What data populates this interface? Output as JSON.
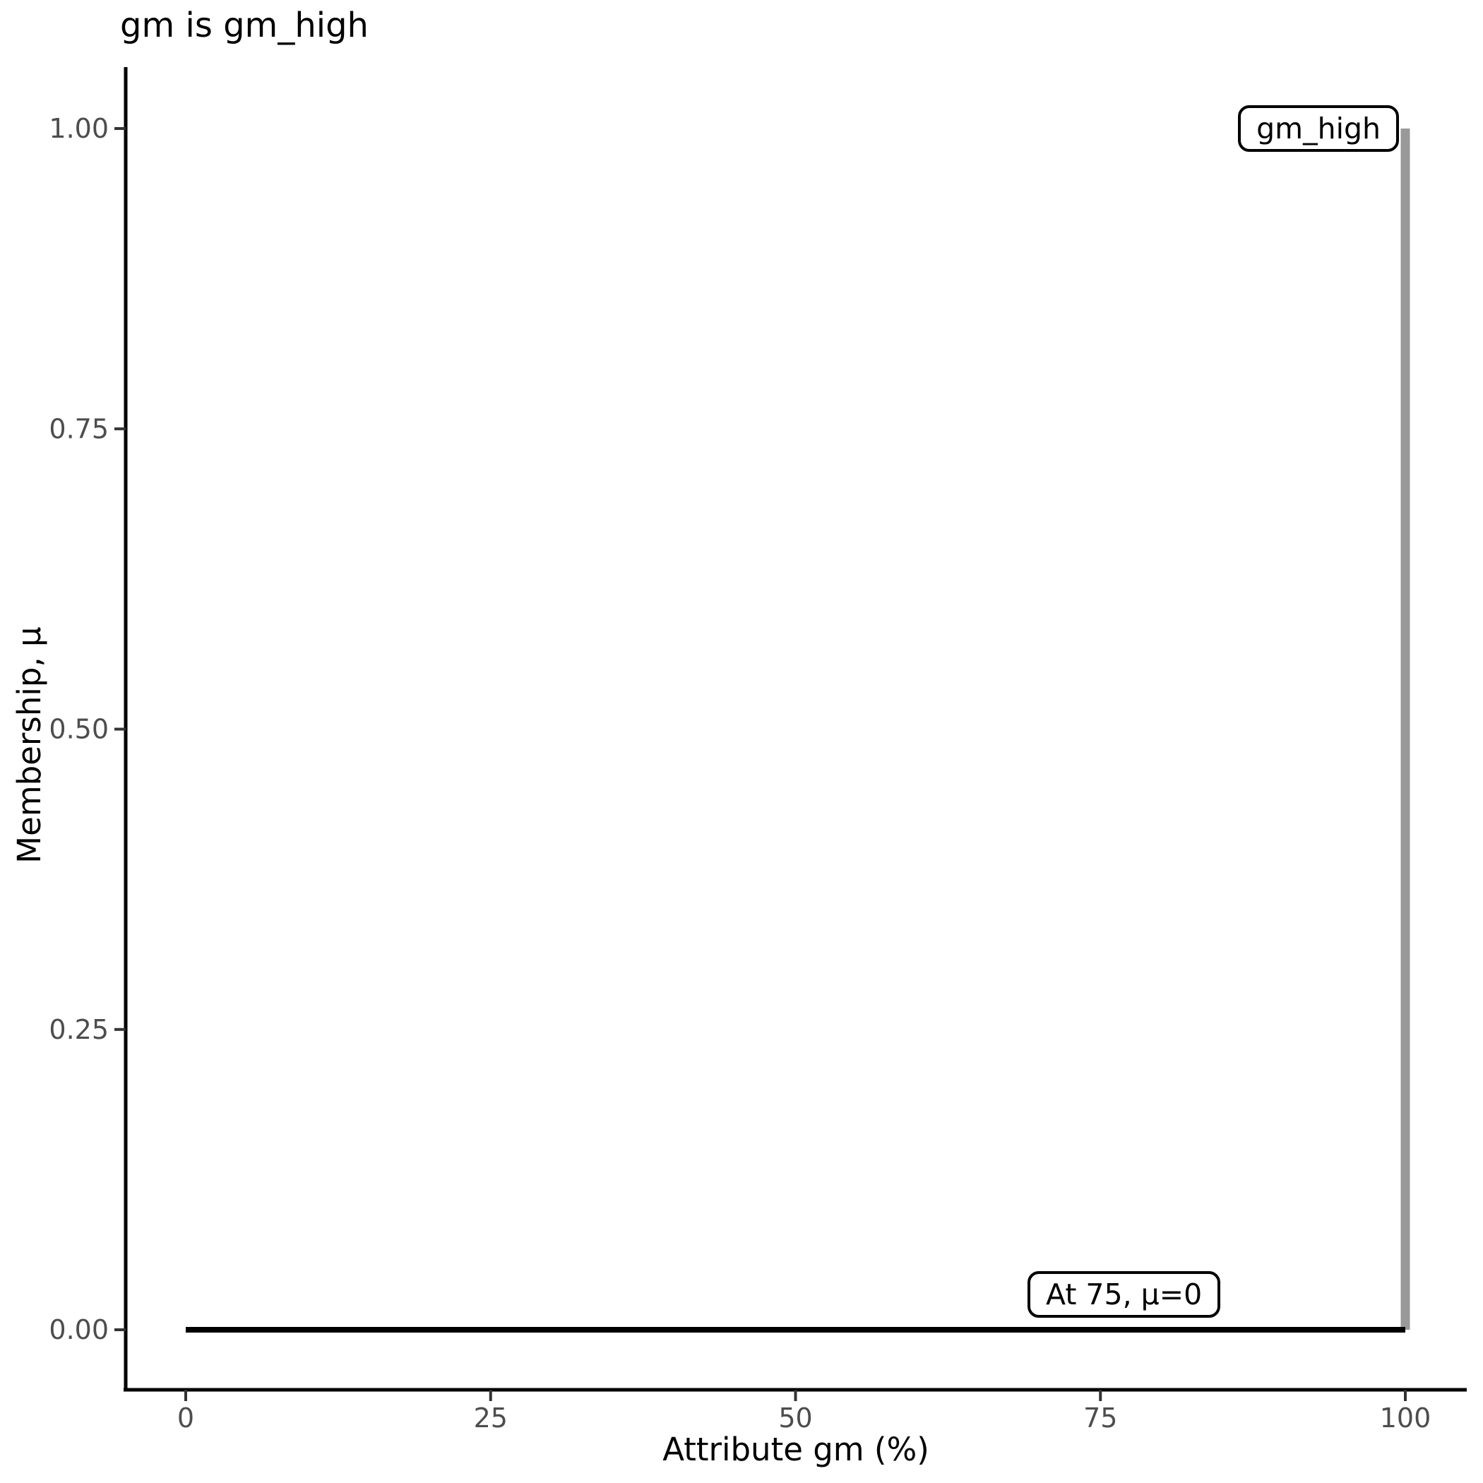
{
  "title": "gm is gm_high",
  "axes": {
    "x": {
      "label": "Attribute gm (%)"
    },
    "y": {
      "label": "Membership, μ"
    }
  },
  "annotations": {
    "set_label": {
      "text": "gm_high"
    },
    "point_label": {
      "text": "At 75, μ=0"
    }
  },
  "colors": {
    "background": "#ffffff",
    "axis_line": "#000000",
    "tick_mark": "#333333",
    "tick_label": "#4d4d4d",
    "membership_line": "#000000",
    "set_line": "#999999",
    "annotation_border": "#000000",
    "annotation_fill": "#ffffff",
    "text": "#000000"
  },
  "chart_data": {
    "type": "line",
    "title": "gm is gm_high",
    "xlabel": "Attribute gm (%)",
    "ylabel": "Membership, μ",
    "xlim": [
      0,
      100
    ],
    "ylim": [
      0,
      1
    ],
    "grid": false,
    "x_ticks": [
      0,
      25,
      50,
      75,
      100
    ],
    "x_tick_labels": [
      "0",
      "25",
      "50",
      "75",
      "100"
    ],
    "y_ticks": [
      0,
      0.25,
      0.5,
      0.75,
      1.0
    ],
    "y_tick_labels": [
      "0.00",
      "0.25",
      "0.50",
      "0.75",
      "1.00"
    ],
    "series": [
      {
        "name": "gm_high-set-line",
        "color": "#999999",
        "stroke_width": 13,
        "points": [
          [
            100,
            0
          ],
          [
            100,
            1
          ]
        ]
      },
      {
        "name": "membership-line",
        "color": "#000000",
        "stroke_width": 8,
        "points": [
          [
            0,
            0
          ],
          [
            100,
            0
          ]
        ]
      }
    ],
    "annotations": [
      {
        "text": "gm_high",
        "anchor_x": 100,
        "anchor_y": 1.0,
        "position": "top-right"
      },
      {
        "text": "At 75, μ=0",
        "anchor_x": 75,
        "anchor_y": 0.0,
        "position": "above-line"
      }
    ],
    "legend": "none"
  }
}
